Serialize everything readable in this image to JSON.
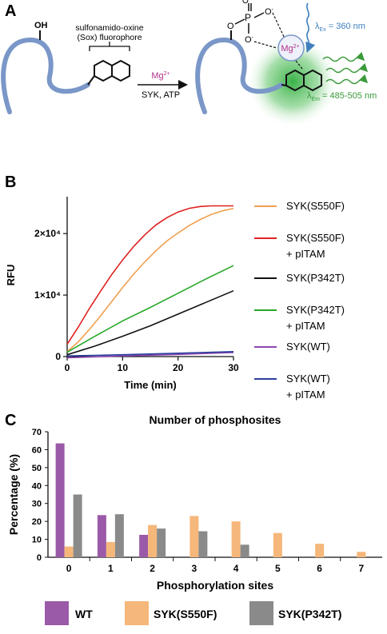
{
  "panels": {
    "a": {
      "letter": "A"
    },
    "b": {
      "letter": "B"
    },
    "c": {
      "letter": "C"
    }
  },
  "schematic": {
    "oh_label": "OH",
    "sox_label_line1": "sulfonamido-oxine",
    "sox_label_line2": "(Sox) fluorophore",
    "mg_label": "Mg",
    "mg_superscript": "2+",
    "arrow_label": "SYK, ATP",
    "phosphate_p": "P",
    "phosphate_o_top": "O",
    "phosphate_o_left": "O",
    "phosphate_o_right": "O",
    "phosphate_o_bottom": "O",
    "complex_mg": "Mg",
    "complex_mg_sup": "2+",
    "lambda_ex_sub": "Ex",
    "lambda_ex_value": " = 360 nm",
    "lambda_em_sub": "Em",
    "lambda_em_value": " = 485-505 nm",
    "lambda_symbol": "λ",
    "colors": {
      "peptide": "#7a97c8",
      "mg_text": "#b0308a",
      "ex": "#3f7fbd",
      "em": "#3a9a3a",
      "glow": "#39b44a"
    }
  },
  "chart_data": [
    {
      "type": "line",
      "xlabel": "Time (min)",
      "ylabel": "RFU",
      "xlim": [
        0,
        30
      ],
      "ylim": [
        0,
        26000
      ],
      "xticks": [
        0,
        10,
        20,
        30
      ],
      "xtick_labels": [
        "0",
        "10",
        "20",
        "30"
      ],
      "yticks": [
        0,
        10000,
        20000
      ],
      "ytick_labels": [
        "0",
        "1×10⁴",
        "2×10⁴"
      ],
      "grid": false,
      "legend_placement": "right",
      "series": [
        {
          "name": "SYK(S550F)",
          "legend_lines": [
            "SYK(S550F)"
          ],
          "color": "#f0a050",
          "x": [
            0,
            2,
            4,
            6,
            8,
            10,
            12,
            14,
            16,
            18,
            20,
            22,
            24,
            26,
            28,
            30
          ],
          "y": [
            800,
            2400,
            4400,
            6600,
            8900,
            11200,
            13400,
            15400,
            17200,
            18800,
            20100,
            21300,
            22300,
            23100,
            23700,
            24100
          ]
        },
        {
          "name": "SYK(S550F) + pITAM",
          "legend_lines": [
            "SYK(S550F)",
            "+ pITAM"
          ],
          "color": "#e02020",
          "x": [
            0,
            2,
            4,
            6,
            8,
            10,
            12,
            14,
            16,
            18,
            20,
            22,
            24,
            26,
            28,
            30
          ],
          "y": [
            2000,
            4800,
            7800,
            10600,
            13300,
            15700,
            17900,
            19800,
            21400,
            22600,
            23500,
            24100,
            24400,
            24500,
            24500,
            24500
          ]
        },
        {
          "name": "SYK(P342T)",
          "legend_lines": [
            "SYK(P342T)"
          ],
          "color": "#111111",
          "x": [
            0,
            5,
            10,
            15,
            20,
            25,
            30
          ],
          "y": [
            300,
            1700,
            3300,
            5000,
            6900,
            8800,
            10700
          ]
        },
        {
          "name": "SYK(P342T) + pITAM",
          "legend_lines": [
            "SYK(P342T)",
            "+ pITAM"
          ],
          "color": "#27a827",
          "x": [
            0,
            5,
            10,
            15,
            20,
            25,
            30
          ],
          "y": [
            700,
            3300,
            5800,
            8000,
            10300,
            12600,
            14800
          ]
        },
        {
          "name": "SYK(WT)",
          "legend_lines": [
            "SYK(WT)"
          ],
          "color": "#8a46b0",
          "x": [
            0,
            10,
            20,
            30
          ],
          "y": [
            -200,
            100,
            350,
            650
          ]
        },
        {
          "name": "SYK(WT) + pITAM",
          "legend_lines": [
            "SYK(WT)",
            "+ pITAM"
          ],
          "color": "#2c3e9c",
          "x": [
            0,
            10,
            20,
            30
          ],
          "y": [
            100,
            300,
            550,
            800
          ]
        }
      ]
    },
    {
      "type": "bar",
      "title": "Number of phosphosites",
      "xlabel": "Phosphorylation sites",
      "ylabel": "Percentage (%)",
      "ylim": [
        0,
        70
      ],
      "yticks": [
        0,
        10,
        20,
        30,
        40,
        50,
        60,
        70
      ],
      "categories": [
        "0",
        "1",
        "2",
        "3",
        "4",
        "5",
        "6",
        "7"
      ],
      "grid": false,
      "legend_placement": "bottom",
      "series": [
        {
          "name": "WT",
          "color": "#9b5aa8",
          "values": [
            63.5,
            23.5,
            12.5,
            null,
            null,
            null,
            null,
            null
          ]
        },
        {
          "name": "SYK(S550F)",
          "color": "#f5b77a",
          "values": [
            6,
            8.5,
            18,
            23,
            20,
            13.5,
            7.5,
            3
          ]
        },
        {
          "name": "SYK(P342T)",
          "color": "#8a8a8a",
          "values": [
            35,
            24,
            16,
            14.5,
            7,
            null,
            null,
            null
          ]
        }
      ]
    }
  ]
}
